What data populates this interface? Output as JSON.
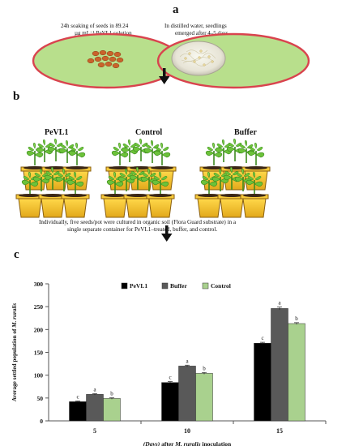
{
  "panels": {
    "a": "a",
    "b": "b",
    "c": "c"
  },
  "panel_a": {
    "left_text": [
      "24h soaking of seeds in 89.24",
      "µg mL⁻¹  PeVL1 solution"
    ],
    "right_text": [
      "In distilled water, seedlings",
      "emerged after 4–5 days."
    ]
  },
  "panel_b": {
    "groups": [
      "PeVL1",
      "Control",
      "Buffer"
    ],
    "caption": [
      "Individually,  five seeds/pot were cultured in organic soil (Flora Guard substrate) in a",
      "single separate container for PeVL1–treated, buffer, and control."
    ]
  },
  "colors": {
    "plate_green": "#b8df8c",
    "plate_rim": "#d9434e",
    "seed": "#c9632b",
    "pot": "#f2c230",
    "pot_dark": "#a8761a",
    "leaf": "#6cc23a",
    "bar_pevl1": "#000000",
    "bar_buffer": "#595959",
    "bar_control": "#a9d18e"
  },
  "chart_data": {
    "type": "bar",
    "categories": [
      "5",
      "10",
      "15"
    ],
    "series": [
      {
        "name": "PeVL1",
        "values": [
          42,
          84,
          170
        ],
        "errors": [
          1.5,
          2,
          2
        ],
        "letters": [
          "c",
          "c",
          "c"
        ]
      },
      {
        "name": "Buffer",
        "values": [
          58,
          120,
          246
        ],
        "errors": [
          1.5,
          2,
          3
        ],
        "letters": [
          "a",
          "a",
          "a"
        ]
      },
      {
        "name": "Control",
        "values": [
          49,
          104,
          213
        ],
        "errors": [
          1.5,
          2,
          2
        ],
        "letters": [
          "b",
          "b",
          "b"
        ]
      }
    ],
    "ylim": [
      0,
      300
    ],
    "yticks": [
      "0",
      "50",
      "100",
      "150",
      "200",
      "250",
      "300"
    ],
    "ylabel_parts": [
      "Average settled population of ",
      "M. ruralis"
    ],
    "xlabel_parts": [
      "(Days)",
      " after ",
      "M. ruralis",
      " inoculation"
    ],
    "legend_position": "top-center",
    "grid": false
  }
}
